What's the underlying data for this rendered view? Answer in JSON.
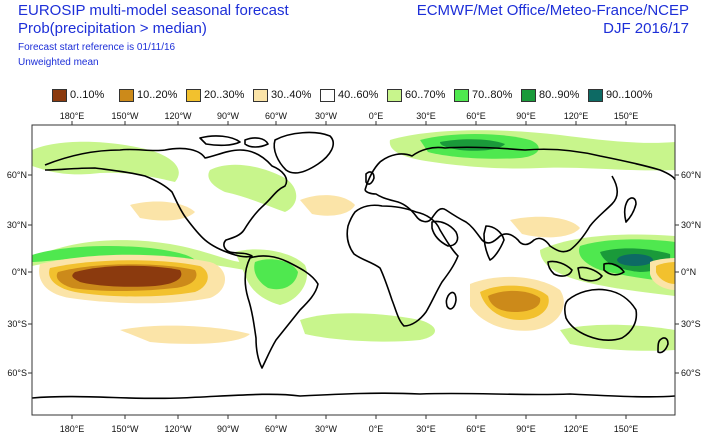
{
  "header": {
    "title": "EUROSIP multi-model seasonal forecast",
    "subtitle": "Prob(precipitation > median)",
    "start_ref": "Forecast start reference is 01/11/16",
    "weighting": "Unweighted mean",
    "centres": "ECMWF/Met Office/Meteo-France/NCEP",
    "season": "DJF 2016/17"
  },
  "legend": [
    {
      "label": "0..10%",
      "color": "#8b3a0e"
    },
    {
      "label": "10..20%",
      "color": "#cc8a1a"
    },
    {
      "label": "20..30%",
      "color": "#f2c12e"
    },
    {
      "label": "30..40%",
      "color": "#fbe4a8"
    },
    {
      "label": "40..60%",
      "color": "#ffffff"
    },
    {
      "label": "60..70%",
      "color": "#c8f58c"
    },
    {
      "label": "70..80%",
      "color": "#4fe84f"
    },
    {
      "label": "80..90%",
      "color": "#1a9a3a"
    },
    {
      "label": "90..100%",
      "color": "#0d6a64"
    }
  ],
  "axes": {
    "lon_ticks": [
      "180°E",
      "150°W",
      "120°W",
      "90°W",
      "60°W",
      "30°W",
      "0°E",
      "30°E",
      "60°E",
      "90°E",
      "120°E",
      "150°E"
    ],
    "lat_ticks": [
      "60°N",
      "30°N",
      "0°N",
      "30°S",
      "60°S"
    ]
  }
}
